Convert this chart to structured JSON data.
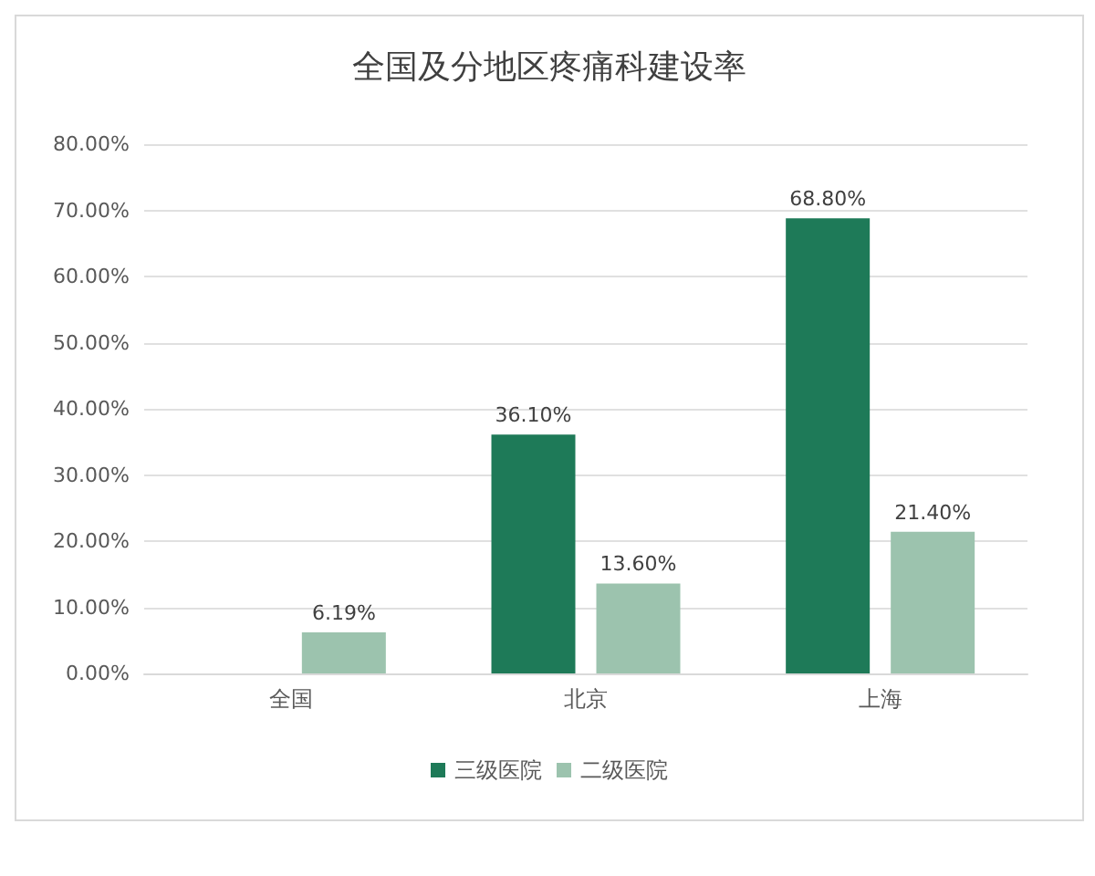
{
  "chart_data": {
    "type": "bar",
    "title": "全国及分地区疼痛科建设率",
    "categories": [
      "全国",
      "北京",
      "上海"
    ],
    "series": [
      {
        "name": "三级医院",
        "color": "#1e7a58",
        "values": [
          null,
          36.1,
          68.8
        ],
        "value_labels": [
          null,
          "36.10%",
          "68.80%"
        ]
      },
      {
        "name": "二级医院",
        "color": "#9cc3ae",
        "values": [
          6.19,
          13.6,
          21.4
        ],
        "value_labels": [
          "6.19%",
          "13.60%",
          "21.40%"
        ]
      }
    ],
    "ylim": [
      0,
      80
    ],
    "yticks": [
      {
        "value": 0,
        "label": "0.00%"
      },
      {
        "value": 10,
        "label": "10.00%"
      },
      {
        "value": 20,
        "label": "20.00%"
      },
      {
        "value": 30,
        "label": "30.00%"
      },
      {
        "value": 40,
        "label": "40.00%"
      },
      {
        "value": 50,
        "label": "50.00%"
      },
      {
        "value": 60,
        "label": "60.00%"
      },
      {
        "value": 70,
        "label": "70.00%"
      },
      {
        "value": 80,
        "label": "80.00%"
      }
    ],
    "grid": "y",
    "legend": "bottom"
  }
}
